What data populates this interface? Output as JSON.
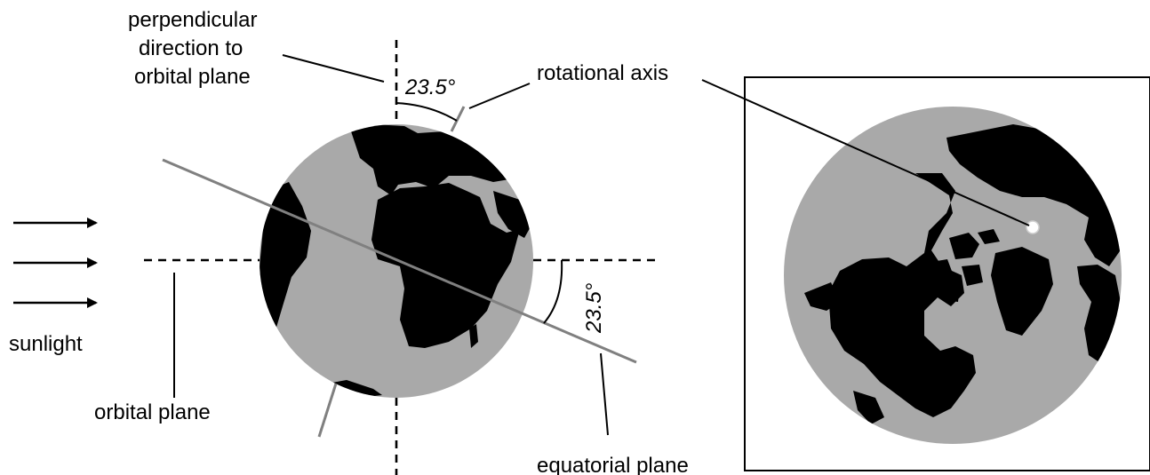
{
  "labels": {
    "perpendicular_line1": "perpendicular",
    "perpendicular_line2": "direction to",
    "perpendicular_line3": "orbital plane",
    "rotational_axis": "rotational axis",
    "sunlight": "sunlight",
    "orbital_plane": "orbital plane",
    "equatorial_plane": "equatorial plane",
    "tilt_angle_top": "23.5°",
    "tilt_angle_right": "23.5°"
  },
  "colors": {
    "ocean": "#a9a9a9",
    "land": "#000000",
    "axis": "#808080",
    "pole_marker": "#ffffff"
  },
  "icons": [
    "sunlight-arrow-icon",
    "earth-side-view",
    "earth-polar-view",
    "north-pole-marker"
  ]
}
